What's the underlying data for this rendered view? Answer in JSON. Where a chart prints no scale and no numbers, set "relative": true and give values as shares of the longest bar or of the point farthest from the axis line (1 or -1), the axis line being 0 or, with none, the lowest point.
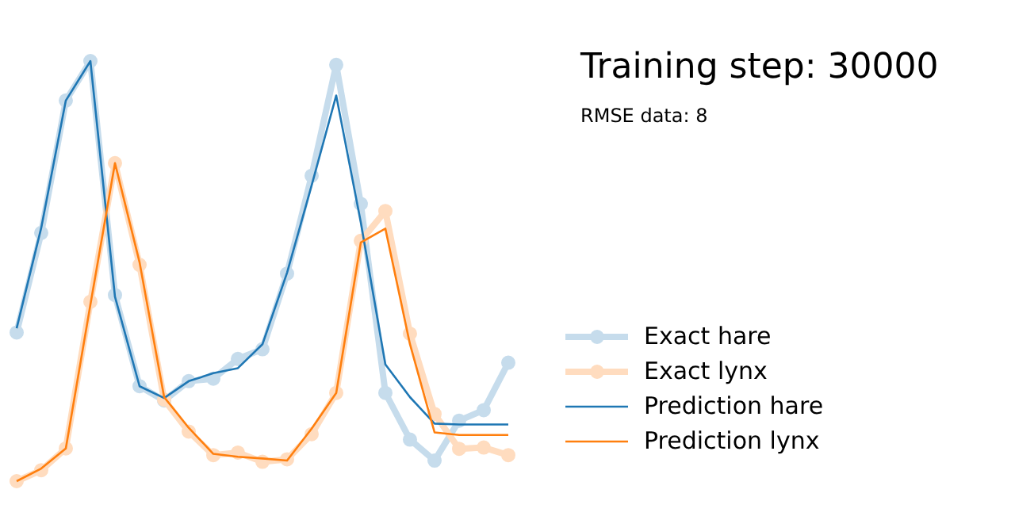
{
  "chart_data": {
    "type": "line",
    "title": "Training step: 30000",
    "subtitle": "RMSE data: 8",
    "relative": true,
    "categories": [
      null,
      null,
      null,
      null,
      null,
      null,
      null,
      null,
      null,
      null,
      null,
      null,
      null,
      null,
      null,
      null,
      null,
      null,
      null,
      null,
      null
    ],
    "series": [
      {
        "name": "Exact hare",
        "color": "#c6dcec",
        "marker": "circle",
        "values": [
          0.354,
          0.591,
          0.906,
          1.0,
          0.443,
          0.226,
          0.192,
          0.238,
          0.244,
          0.291,
          0.314,
          0.494,
          0.727,
          0.991,
          0.66,
          0.21,
          0.099,
          0.049,
          0.144,
          0.169,
          0.282
        ]
      },
      {
        "name": "Exact lynx",
        "color": "#ffdcbf",
        "marker": "circle",
        "values": [
          0.0,
          0.026,
          0.078,
          0.427,
          0.757,
          0.515,
          0.194,
          0.118,
          0.062,
          0.068,
          0.046,
          0.052,
          0.112,
          0.21,
          0.572,
          0.643,
          0.351,
          0.16,
          0.077,
          0.08,
          0.062
        ]
      },
      {
        "name": "Prediction hare",
        "color": "#1f77b4",
        "marker": "none",
        "values": [
          0.364,
          0.603,
          0.906,
          1.0,
          0.439,
          0.226,
          0.198,
          0.238,
          0.257,
          0.269,
          0.326,
          0.496,
          0.704,
          0.918,
          0.616,
          0.278,
          0.2,
          0.137,
          0.135,
          0.135,
          0.135
        ]
      },
      {
        "name": "Prediction lynx",
        "color": "#ff7f0e",
        "marker": "none",
        "values": [
          0.0,
          0.03,
          0.078,
          0.42,
          0.757,
          0.521,
          0.2,
          0.127,
          0.065,
          0.058,
          0.054,
          0.049,
          0.125,
          0.21,
          0.568,
          0.601,
          0.326,
          0.116,
          0.11,
          0.11,
          0.11
        ]
      }
    ],
    "legend": "right",
    "grid": false
  }
}
